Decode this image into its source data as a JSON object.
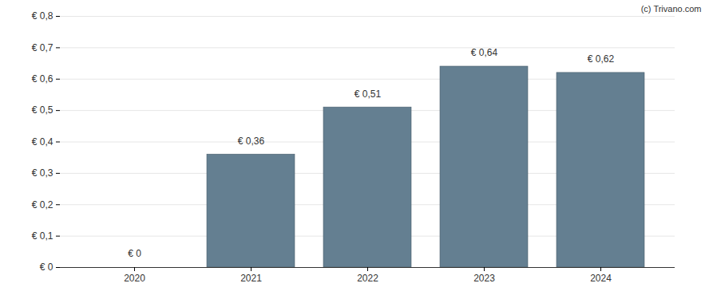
{
  "chart_data": {
    "type": "bar",
    "source": "(c) Trivano.com",
    "categories": [
      "2020",
      "2021",
      "2022",
      "2023",
      "2024"
    ],
    "values": [
      0,
      0.36,
      0.51,
      0.64,
      0.62
    ],
    "value_labels": [
      "€ 0",
      "€ 0,36",
      "€ 0,51",
      "€ 0,64",
      "€ 0,62"
    ],
    "data_labels": true,
    "color": "#647f91",
    "ylim": [
      0,
      0.8
    ],
    "yticks": [
      {
        "value": 0,
        "label": "€ 0"
      },
      {
        "value": 0.1,
        "label": "€ 0,1"
      },
      {
        "value": 0.2,
        "label": "€ 0,2"
      },
      {
        "value": 0.3,
        "label": "€ 0,3"
      },
      {
        "value": 0.4,
        "label": "€ 0,4"
      },
      {
        "value": 0.5,
        "label": "€ 0,5"
      },
      {
        "value": 0.6,
        "label": "€ 0,6"
      },
      {
        "value": 0.7,
        "label": "€ 0,7"
      },
      {
        "value": 0.8,
        "label": "€ 0,8"
      }
    ],
    "grid": true
  }
}
